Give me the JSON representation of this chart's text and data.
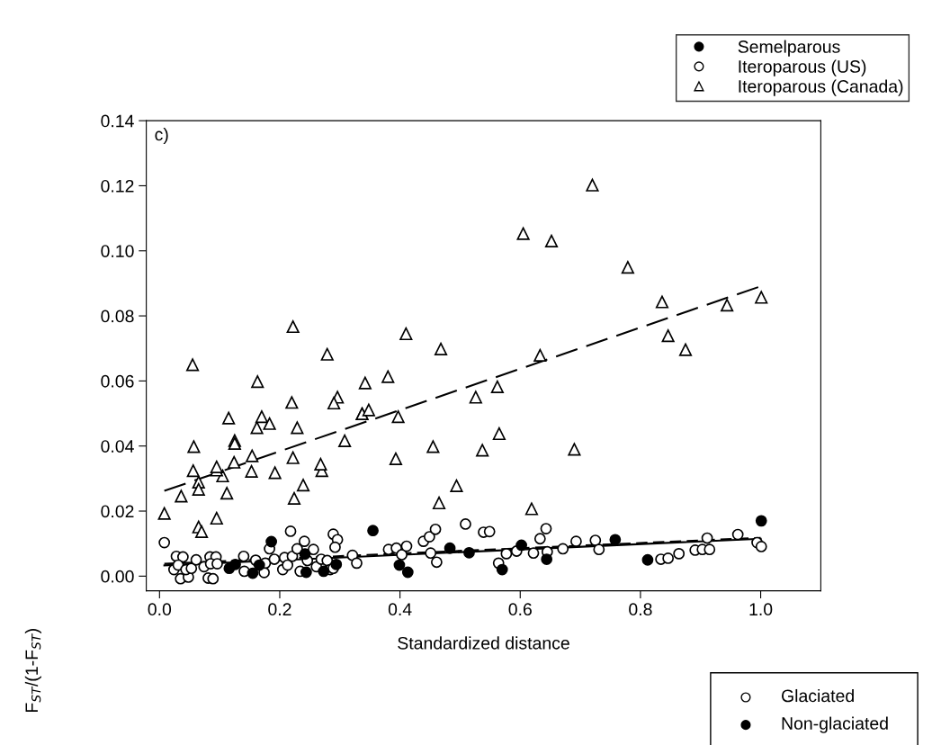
{
  "chart_data": {
    "type": "scatter",
    "xlabel": "Standardized distance",
    "ylabel": "F$_{ST}$/(1-F$_{ST}$)",
    "annotations": [
      "c)",
      "Glaciated",
      "Non-glaciated"
    ],
    "xlim": [
      -0.022,
      1.1
    ],
    "ylim": [
      -0.0045,
      0.14
    ],
    "xticks": [
      {
        "value": 0,
        "label": "0.0"
      },
      {
        "value": 0.2,
        "label": "0.2"
      },
      {
        "value": 0.4,
        "label": "0.4"
      },
      {
        "value": 0.6,
        "label": "0.6"
      },
      {
        "value": 0.8,
        "label": "0.8"
      },
      {
        "value": 1,
        "label": "1.0"
      }
    ],
    "yticks": [
      {
        "value": 0,
        "label": "0.00"
      },
      {
        "value": 0.02,
        "label": "0.02"
      },
      {
        "value": 0.04,
        "label": "0.04"
      },
      {
        "value": 0.06,
        "label": "0.06"
      },
      {
        "value": 0.08,
        "label": "0.08"
      },
      {
        "value": 0.1,
        "label": "0.10"
      },
      {
        "value": 0.12,
        "label": "0.12"
      },
      {
        "value": 0.14,
        "label": "0.14"
      }
    ],
    "grid": false,
    "legend": "top right",
    "series": [
      {
        "name": "Semelparous",
        "color": "#000000",
        "marker": "circle",
        "x": [
          0.116,
          0.126,
          0.155,
          0.166,
          0.186,
          0.242,
          0.244,
          0.273,
          0.294,
          0.355,
          0.399,
          0.413,
          0.483,
          0.515,
          0.57,
          0.602,
          0.644,
          0.758,
          0.812,
          1.001
        ],
        "values": [
          0.0024,
          0.0036,
          0.0009,
          0.0034,
          0.0106,
          0.0068,
          0.0012,
          0.0015,
          0.0036,
          0.014,
          0.0034,
          0.0012,
          0.0086,
          0.0072,
          0.002,
          0.0095,
          0.0052,
          0.0112,
          0.005,
          0.017
        ]
      },
      {
        "name": "Iteroparous (US)",
        "color": "#ffffff",
        "marker": "circle",
        "x": [
          0.008,
          0.028,
          0.039,
          0.024,
          0.031,
          0.035,
          0.048,
          0.044,
          0.053,
          0.061,
          0.074,
          0.084,
          0.094,
          0.081,
          0.089,
          0.085,
          0.096,
          0.14,
          0.141,
          0.16,
          0.174,
          0.176,
          0.183,
          0.191,
          0.205,
          0.208,
          0.213,
          0.218,
          0.221,
          0.229,
          0.234,
          0.241,
          0.246,
          0.256,
          0.261,
          0.269,
          0.279,
          0.284,
          0.289,
          0.296,
          0.292,
          0.289,
          0.321,
          0.328,
          0.381,
          0.394,
          0.403,
          0.411,
          0.439,
          0.449,
          0.459,
          0.451,
          0.461,
          0.509,
          0.539,
          0.549,
          0.564,
          0.577,
          0.594,
          0.622,
          0.633,
          0.643,
          0.645,
          0.671,
          0.693,
          0.725,
          0.731,
          0.834,
          0.846,
          0.864,
          0.891,
          0.903,
          0.915,
          0.911,
          0.962,
          0.994,
          1.001
        ],
        "values": [
          0.0103,
          0.0061,
          0.0059,
          0.002,
          0.0034,
          -0.0008,
          -0.0003,
          0.002,
          0.0024,
          0.005,
          0.0029,
          0.0059,
          0.0059,
          -0.0006,
          -0.0008,
          0.0038,
          0.0038,
          0.0061,
          0.0015,
          0.0049,
          0.0011,
          0.004,
          0.0084,
          0.0052,
          0.002,
          0.0057,
          0.0034,
          0.0138,
          0.0061,
          0.0084,
          0.0015,
          0.0107,
          0.0048,
          0.0082,
          0.0029,
          0.0052,
          0.0048,
          0.002,
          0.0129,
          0.0112,
          0.0089,
          0.0024,
          0.0064,
          0.004,
          0.0082,
          0.0086,
          0.0066,
          0.0092,
          0.0107,
          0.0121,
          0.0144,
          0.0071,
          0.0043,
          0.016,
          0.0135,
          0.0137,
          0.004,
          0.0069,
          0.0077,
          0.0071,
          0.0115,
          0.0146,
          0.0075,
          0.0084,
          0.0107,
          0.011,
          0.0082,
          0.0052,
          0.0055,
          0.0069,
          0.008,
          0.0082,
          0.0082,
          0.0117,
          0.0128,
          0.0103,
          0.0091
        ]
      },
      {
        "name": "Iteroparous (Canada)",
        "color": "#ffffff",
        "marker": "triangle",
        "x": [
          0.055,
          0.222,
          0.163,
          0.279,
          0.41,
          0.468,
          0.342,
          0.38,
          0.526,
          0.115,
          0.17,
          0.183,
          0.162,
          0.22,
          0.296,
          0.29,
          0.337,
          0.337,
          0.348,
          0.397,
          0.229,
          0.72,
          0.605,
          0.652,
          0.779,
          0.836,
          1.001,
          0.944,
          0.846,
          0.875,
          0.633,
          0.562,
          0.565,
          0.008,
          0.036,
          0.065,
          0.065,
          0.105,
          0.095,
          0.056,
          0.112,
          0.095,
          0.065,
          0.07,
          0.153,
          0.192,
          0.27,
          0.239,
          0.224,
          0.494,
          0.465,
          0.619,
          0.69,
          0.057,
          0.125,
          0.125,
          0.154,
          0.308,
          0.222,
          0.455,
          0.537,
          0.393,
          0.095,
          0.124,
          0.268
        ],
        "values": [
          0.065,
          0.0767,
          0.0598,
          0.0682,
          0.0745,
          0.0698,
          0.0594,
          0.0613,
          0.055,
          0.0486,
          0.049,
          0.0469,
          0.0456,
          0.0534,
          0.055,
          0.0532,
          0.0499,
          0.0499,
          0.0511,
          0.049,
          0.0456,
          0.1202,
          0.1053,
          0.103,
          0.0949,
          0.0843,
          0.0857,
          0.0833,
          0.0739,
          0.0696,
          0.0679,
          0.0582,
          0.0438,
          0.0193,
          0.0246,
          0.0289,
          0.0267,
          0.0308,
          0.0326,
          0.0324,
          0.0255,
          0.0178,
          0.0151,
          0.0137,
          0.0322,
          0.0318,
          0.0324,
          0.028,
          0.0239,
          0.0278,
          0.0225,
          0.0207,
          0.039,
          0.0398,
          0.0417,
          0.0408,
          0.037,
          0.0416,
          0.0364,
          0.0398,
          0.0387,
          0.0361,
          0.0336,
          0.035,
          0.0344
        ]
      },
      {
        "type": "line",
        "color": "#000000",
        "line_style": "solid",
        "x": [
          0.008,
          1.0
        ],
        "values": [
          0.0033,
          0.0115
        ]
      },
      {
        "type": "line",
        "color": "#000000",
        "line_style": "dashed",
        "x": [
          0.008,
          1.0
        ],
        "values": [
          0.0038,
          0.0118
        ]
      },
      {
        "type": "line",
        "color": "#000000",
        "line_style": "longdash",
        "x": [
          0.008,
          1.0
        ],
        "values": [
          0.0262,
          0.0891
        ]
      }
    ]
  }
}
